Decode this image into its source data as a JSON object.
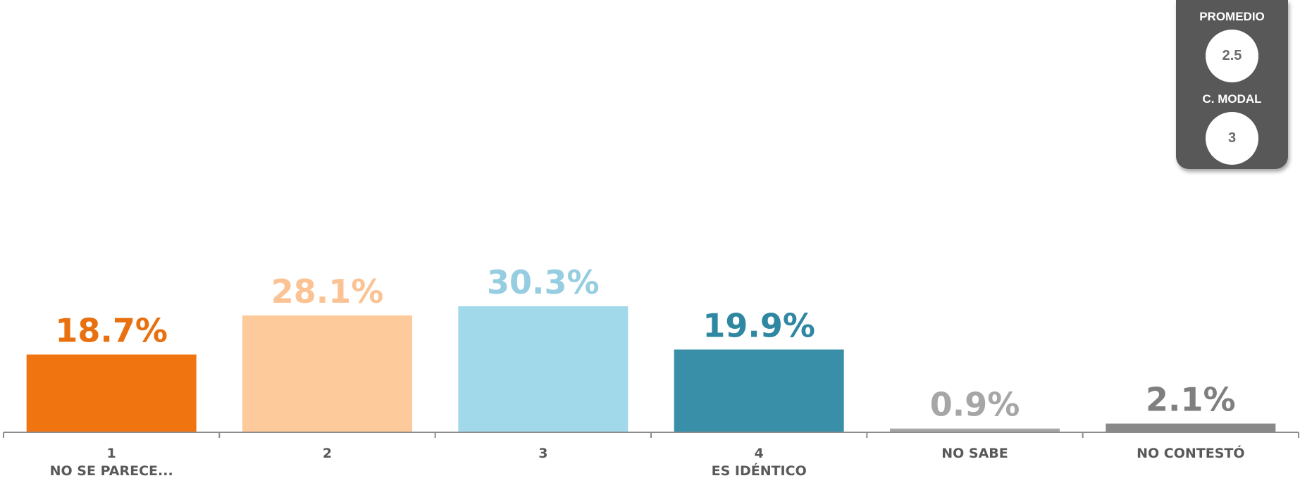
{
  "stats": {
    "promedio_label": "PROMEDIO",
    "promedio_value": "2.5",
    "modal_label": "C. MODAL",
    "modal_value": "3"
  },
  "chart_data": {
    "type": "bar",
    "categories": [
      {
        "line1": "1",
        "line2": "NO SE PARECE..."
      },
      {
        "line1": "2",
        "line2": ""
      },
      {
        "line1": "3",
        "line2": ""
      },
      {
        "line1": "4",
        "line2": "ES IDÉNTICO"
      },
      {
        "line1": "NO SABE",
        "line2": ""
      },
      {
        "line1": "NO CONTESTÓ",
        "line2": ""
      }
    ],
    "values": [
      18.7,
      28.1,
      30.3,
      19.9,
      0.9,
      2.1
    ],
    "value_labels": [
      "18.7%",
      "28.1%",
      "30.3%",
      "19.9%",
      "0.9%",
      "2.1%"
    ],
    "bar_colors": [
      "#f07511",
      "#fdcb9b",
      "#a1d9ea",
      "#398ea8",
      "#a6a6a6",
      "#898989"
    ],
    "label_colors": [
      "#e8700f",
      "#fbc394",
      "#96cde0",
      "#2f87a1",
      "#a6a6a6",
      "#7f7f7f"
    ],
    "ylim": [
      0,
      30.3
    ],
    "grid": false
  }
}
